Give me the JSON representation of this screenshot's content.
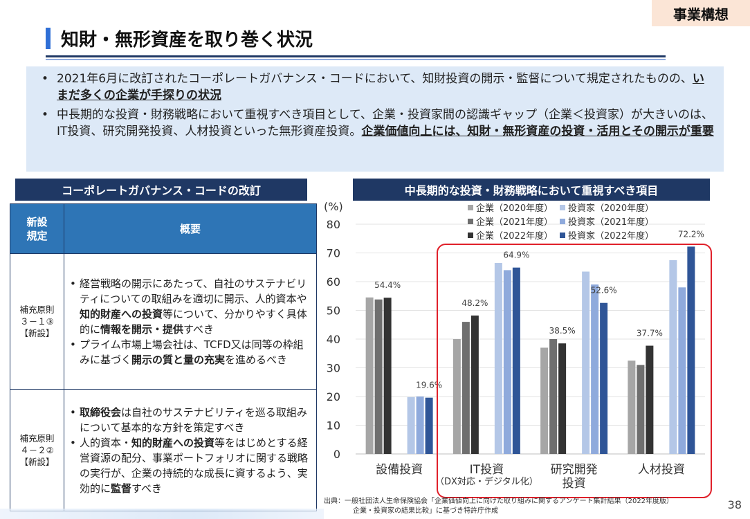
{
  "tag": "事業構想",
  "title": "知財・無形資産を取り巻く状況",
  "summary": {
    "bullet1_pre": "2021年6月に改訂されたコーポレートガバナンス・コードにおいて、知財投資の開示・監督について規定されたものの、",
    "bullet1_bold": "いまだ多くの企業が手探りの状況",
    "bullet2_pre": "中長期的な投資・財務戦略において重視すべき項目として、企業・投資家間の認識ギャップ（企業＜投資家）が大きいのは、IT投資、研究開発投資、人材投資といった無形資産投資。",
    "bullet2_bold": "企業価値向上には、知財・無形資産の投資・活用とその開示が重要"
  },
  "left_heading": "コーポレートガバナンス・コードの改訂",
  "right_heading": "中長期的な投資・財務戦略において重視すべき項目",
  "table": {
    "col1": "新設規定",
    "col2": "概要",
    "rows": [
      {
        "rule_l1": "補充原則",
        "rule_l2": "３－１③",
        "rule_l3": "【新設】",
        "items": [
          [
            {
              "t": "経営戦略の開示にあたって、自社のサステナビリティについての取組みを適切に開示、人的資本や"
            },
            {
              "t": "知的財産への投資",
              "b": true
            },
            {
              "t": "等について、分かりやすく具体的に"
            },
            {
              "t": "情報を開示・提供",
              "b": true
            },
            {
              "t": "すべき"
            }
          ],
          [
            {
              "t": "プライム市場上場会社は、TCFD又は同等の枠組みに基づく"
            },
            {
              "t": "開示の質と量の充実",
              "b": true
            },
            {
              "t": "を進めるべき"
            }
          ]
        ]
      },
      {
        "rule_l1": "補充原則",
        "rule_l2": "４－２②",
        "rule_l3": "【新設】",
        "items": [
          [
            {
              "t": "取締役会",
              "b": true
            },
            {
              "t": "は自社のサステナビリティを巡る取組みについて基本的な方針を策定すべき"
            }
          ],
          [
            {
              "t": "人的資本・"
            },
            {
              "t": "知的財産への投資",
              "b": true
            },
            {
              "t": "等をはじめとする経営資源の配分、事業ポートフォリオに関する戦略の実行が、企業の持続的な成長に資するよう、実効的に"
            },
            {
              "t": "監督",
              "b": true
            },
            {
              "t": "すべき"
            }
          ]
        ]
      }
    ]
  },
  "chart_data": {
    "type": "bar",
    "unit_label": "(%)",
    "ylim": [
      0,
      80
    ],
    "yticks": [
      0,
      10,
      20,
      30,
      40,
      50,
      60,
      70,
      80
    ],
    "grid": true,
    "legend_position": "top-right",
    "categories": [
      {
        "label": "設備投資",
        "sub": ""
      },
      {
        "label": "IT投資",
        "sub": "（DX対応・デジタル化）"
      },
      {
        "label": "研究開発",
        "label2": "投資"
      },
      {
        "label": "人材投資"
      }
    ],
    "groups": [
      {
        "name": "企業",
        "series": [
          {
            "name": "企業（2020年度）",
            "color": "#a6a6a6",
            "values": [
              54.5,
              40.0,
              37.0,
              32.5
            ]
          },
          {
            "name": "企業（2021年度）",
            "color": "#6f6f6f",
            "values": [
              53.8,
              46.0,
              40.0,
              31.0
            ]
          },
          {
            "name": "企業（2022年度）",
            "color": "#333333",
            "values": [
              54.4,
              48.2,
              38.5,
              37.7
            ]
          }
        ]
      },
      {
        "name": "投資家",
        "series": [
          {
            "name": "投資家（2020年度）",
            "color": "#b4c7e7",
            "values": [
              19.8,
              66.5,
              63.5,
              67.5
            ]
          },
          {
            "name": "投資家（2021年度）",
            "color": "#8faadc",
            "values": [
              20.0,
              64.0,
              59.0,
              58.0
            ]
          },
          {
            "name": "投資家（2022年度）",
            "color": "#2f5597",
            "values": [
              19.6,
              64.9,
              52.6,
              72.2
            ]
          }
        ]
      }
    ],
    "data_labels": [
      {
        "category": 0,
        "series": "企業（2022年度）",
        "text": "54.4%"
      },
      {
        "category": 0,
        "series": "投資家（2022年度）",
        "text": "19.6%"
      },
      {
        "category": 1,
        "series": "企業（2022年度）",
        "text": "48.2%"
      },
      {
        "category": 1,
        "series": "投資家（2022年度）",
        "text": "64.9%"
      },
      {
        "category": 2,
        "series": "企業（2022年度）",
        "text": "38.5%"
      },
      {
        "category": 2,
        "series": "投資家（2022年度）",
        "text": "52.6%"
      },
      {
        "category": 3,
        "series": "企業（2022年度）",
        "text": "37.7%"
      },
      {
        "category": 3,
        "series": "投資家（2022年度）",
        "text": "72.2%"
      }
    ],
    "highlight_color": "#e0202a"
  },
  "source_l1": "出典：一般社団法人生命保険協会「企業価値向上に向けた取り組みに関するアンケート集計結果（2022年度版）",
  "source_l2": "企業・投資家の結果比較」に基づき特許庁作成",
  "page_number": "38"
}
